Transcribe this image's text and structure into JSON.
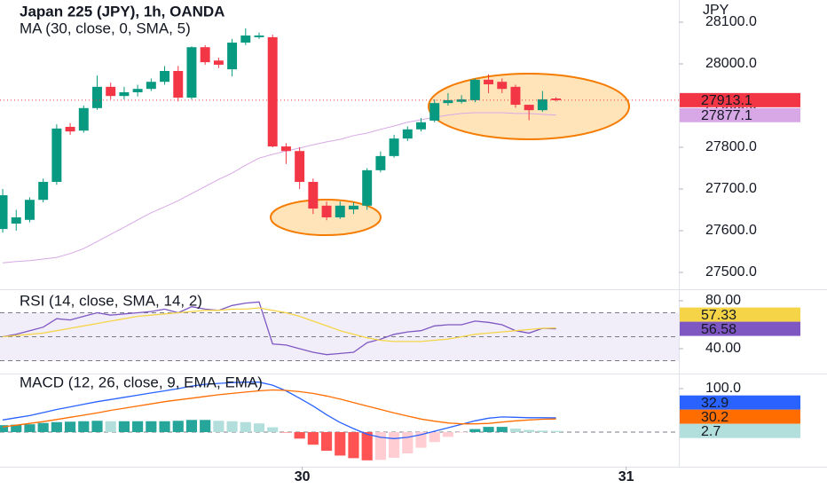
{
  "chart_data": [
    {
      "type": "candlestick",
      "title": "Japan 225 (JPY), 1h, OANDA",
      "y_label": "JPY",
      "up_color": "#089981",
      "down_color": "#f23645",
      "open": [
        27604,
        27617,
        27626,
        27674,
        27717,
        27849,
        27840,
        27894,
        27945,
        27923,
        27932,
        27940,
        27957,
        27983,
        27919,
        28040,
        28008,
        27987,
        28051,
        28064,
        28064,
        27802,
        27791,
        27717,
        27660,
        27632,
        27651,
        27660,
        27745,
        27779,
        27821,
        27843,
        27864,
        27906,
        27909,
        27913,
        27962,
        27957,
        27945,
        27902,
        27889,
        27917
      ],
      "high": [
        27700,
        27650,
        27680,
        27725,
        27855,
        27858,
        27900,
        27972,
        27955,
        27945,
        27950,
        27965,
        27995,
        27995,
        28042,
        28045,
        28015,
        28060,
        28085,
        28075,
        28070,
        27810,
        27800,
        27725,
        27670,
        27670,
        27668,
        27750,
        27790,
        27830,
        27850,
        27870,
        27915,
        27930,
        27925,
        27965,
        27975,
        27965,
        27950,
        27900,
        27935,
        27920
      ],
      "low": [
        27595,
        27600,
        27620,
        27668,
        27710,
        27830,
        27835,
        27890,
        27915,
        27915,
        27922,
        27935,
        27950,
        27910,
        27915,
        27998,
        27990,
        27970,
        28045,
        28060,
        27800,
        27760,
        27700,
        27640,
        27625,
        27628,
        27640,
        27650,
        27740,
        27775,
        27815,
        27838,
        27860,
        27900,
        27905,
        27908,
        27930,
        27930,
        27895,
        27865,
        27885,
        27910
      ],
      "close": [
        27685,
        27632,
        27674,
        27717,
        27845,
        27838,
        27894,
        27945,
        27923,
        27932,
        27940,
        27957,
        27983,
        27919,
        28040,
        28004,
        27998,
        28051,
        28068,
        28068,
        27802,
        27791,
        27717,
        27653,
        27632,
        27660,
        27660,
        27745,
        27779,
        27821,
        27843,
        27860,
        27906,
        27913,
        27915,
        27962,
        27951,
        27940,
        27902,
        27889,
        27915,
        27913.1
      ],
      "series": [
        {
          "name": "MA (30, close, 0, SMA, 5)",
          "color": "#d8a8e6",
          "values": [
            27523,
            27526,
            27528,
            27532,
            27536,
            27545,
            27557,
            27574,
            27591,
            27608,
            27626,
            27643,
            27657,
            27672,
            27689,
            27706,
            27723,
            27738,
            27757,
            27774,
            27783,
            27791,
            27798,
            27806,
            27813,
            27819,
            27828,
            27834,
            27843,
            27851,
            27860,
            27866,
            27872,
            27877,
            27881,
            27883,
            27883,
            27883,
            27881,
            27881,
            27879,
            27877.1
          ]
        }
      ],
      "ylim": [
        27461.7,
        28153.2
      ],
      "yticks": [
        {
          "value": 28100,
          "label": "28100.0"
        },
        {
          "value": 28000,
          "label": "28000.0"
        },
        {
          "value": 27900,
          "label": "27900.0"
        },
        {
          "value": 27800,
          "label": "27800.0"
        },
        {
          "value": 27700,
          "label": "27700.0"
        },
        {
          "value": 27600,
          "label": "27600.0"
        },
        {
          "value": 27500,
          "label": "27500.0"
        }
      ],
      "xlim": [
        -0.2,
        50.1
      ]
    },
    {
      "type": "line",
      "title": "RSI (14, close, SMA, 14, 2)",
      "series": [
        {
          "color": "#7e57c2",
          "values": [
            50,
            52,
            55,
            58,
            65,
            64,
            67,
            70,
            68,
            69,
            70,
            71,
            73,
            70,
            75,
            73,
            72,
            76,
            78,
            79,
            44,
            43,
            40,
            37,
            35,
            36,
            37,
            45,
            48,
            52,
            54,
            55,
            59,
            60,
            60,
            63,
            62,
            60,
            55,
            53,
            57,
            56.58
          ]
        },
        {
          "color": "#f5d547",
          "values": [
            50,
            51,
            52,
            53,
            55,
            57,
            59,
            61,
            63,
            65,
            67,
            68,
            69,
            70,
            71,
            72,
            72,
            73,
            73,
            74,
            72,
            70,
            67,
            63,
            59,
            55,
            52,
            49,
            47,
            46,
            46,
            46,
            47,
            48,
            50,
            52,
            53,
            54,
            55,
            56,
            57,
            57.33
          ]
        }
      ],
      "bands": [
        70,
        50,
        30
      ],
      "ylim": [
        20,
        88.1
      ],
      "yticks": [
        {
          "value": 80,
          "label": "80.00"
        },
        {
          "value": 40,
          "label": "40.00"
        }
      ],
      "xlim": [
        -0.2,
        50.1
      ]
    },
    {
      "type": "macd",
      "title": "MACD (12, 26, close, 9, EMA, EMA)",
      "histogram": [
        16,
        17,
        18,
        21,
        23,
        24,
        25,
        26,
        25,
        25,
        25,
        25,
        25,
        26,
        28,
        28,
        26,
        25,
        23,
        20,
        11,
        -1,
        -15,
        -29,
        -43,
        -54,
        -60,
        -65,
        -64,
        -59,
        -49,
        -36,
        -23,
        -11,
        -1,
        7,
        12,
        12,
        8,
        5,
        3.5,
        2.7
      ],
      "hist_colors": {
        "grow_up": "#26a69a",
        "fall_up": "#b2dfdb",
        "rise_down": "#ffcdd2",
        "fall_down": "#ff5252"
      },
      "series": [
        {
          "color": "#2962ff",
          "values": [
            28,
            33,
            38,
            45,
            52,
            58,
            64,
            70,
            75,
            80,
            85,
            90,
            95,
            100,
            106,
            110,
            112,
            114,
            115,
            115,
            108,
            95,
            78,
            60,
            40,
            22,
            8,
            -5,
            -12,
            -15,
            -12,
            -6,
            2,
            10,
            18,
            26,
            32,
            35,
            34,
            33,
            33,
            32.9
          ]
        },
        {
          "color": "#ff6d00",
          "values": [
            12,
            16,
            20,
            24,
            29,
            34,
            39,
            44,
            50,
            55,
            60,
            65,
            70,
            74,
            78,
            82,
            86,
            89,
            92,
            95,
            97,
            96,
            93,
            89,
            83,
            76,
            68,
            60,
            52,
            44,
            37,
            30,
            25,
            21,
            19,
            19,
            20,
            23,
            26,
            28,
            29.5,
            30.2
          ]
        }
      ],
      "ylim": [
        -77.6,
        132.7
      ],
      "yticks": [
        {
          "value": 100,
          "label": "100.0"
        }
      ],
      "xlim": [
        -0.2,
        50.1
      ],
      "xticks": [
        {
          "value": 22.2,
          "label": "30"
        },
        {
          "value": 46.2,
          "label": "31"
        }
      ]
    }
  ]
}
